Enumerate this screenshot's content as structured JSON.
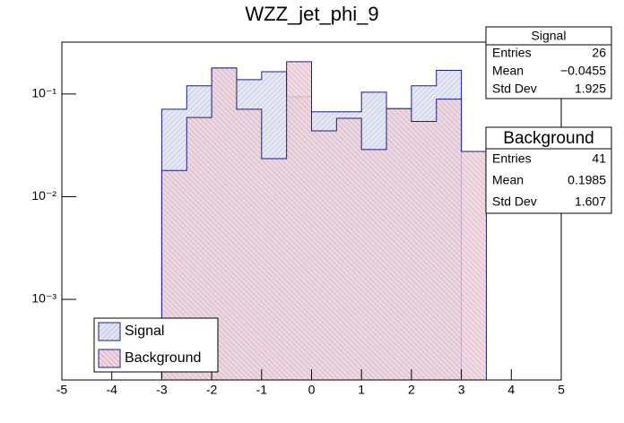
{
  "chart_data": {
    "type": "histogram",
    "title": "WZZ_jet_phi_9",
    "log_y": true,
    "legend": "lower left",
    "xlim": [
      -5,
      5
    ],
    "xticks": [
      -5,
      -4,
      -3,
      -2,
      -1,
      0,
      1,
      2,
      3,
      4,
      5
    ],
    "ylim": [
      0.000164,
      0.32
    ],
    "yticks": [
      {
        "value": 0.001,
        "label": "10⁻³"
      },
      {
        "value": 0.01,
        "label": "10⁻²"
      },
      {
        "value": 0.1,
        "label": "10⁻¹"
      }
    ],
    "series": [
      {
        "name": "Signal",
        "color": "#c9cfe6",
        "line": "#1c1c8a",
        "bins": [
          -3,
          -2.5,
          -2,
          -1.5,
          -1,
          -0.5,
          0,
          0.5,
          1,
          1.5,
          2,
          2.5,
          3
        ],
        "values": [
          0.071,
          0.12,
          0.179,
          0.138,
          0.165,
          0.094,
          0.067,
          0.067,
          0.104,
          0.072,
          0.12,
          0.17
        ]
      },
      {
        "name": "Background",
        "color": "#d9a8b8",
        "line": "#1c1c8a",
        "bins": [
          -3,
          -2.5,
          -2,
          -1.5,
          -1,
          -0.5,
          0,
          0.5,
          1,
          1.5,
          2,
          2.5,
          3,
          3.5
        ],
        "values": [
          0.018,
          0.059,
          0.179,
          0.071,
          0.0235,
          0.206,
          0.0438,
          0.058,
          0.0288,
          0.072,
          0.054,
          0.089,
          0.0276
        ]
      }
    ],
    "stats": [
      {
        "title": "Signal",
        "rows": [
          [
            "Entries",
            26
          ],
          [
            "Mean",
            "−0.0455"
          ],
          [
            "Std Dev",
            1.925
          ]
        ]
      },
      {
        "title": "Background",
        "rows": [
          [
            "Entries",
            41
          ],
          [
            "Mean",
            0.1985
          ],
          [
            "Std Dev",
            1.607
          ]
        ]
      }
    ]
  }
}
